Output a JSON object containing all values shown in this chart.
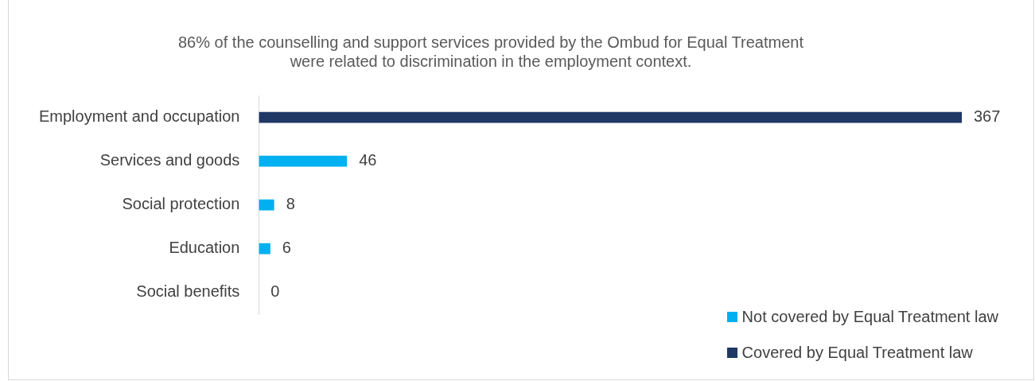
{
  "chart_data": {
    "type": "bar",
    "orientation": "horizontal",
    "title": "86% of the counselling and support services provided by the Ombud for Equal Treatment\nwere related to discrimination in the employment context.",
    "categories": [
      "Employment and occupation",
      "Services and goods",
      "Social protection",
      "Education",
      "Social benefits"
    ],
    "series": [
      {
        "name": "Not covered by Equal Treatment law",
        "color": "#00b0f0",
        "values": [
          null,
          46,
          8,
          6,
          0
        ]
      },
      {
        "name": "Covered by Equal Treatment law",
        "color": "#1f3864",
        "values": [
          367,
          null,
          null,
          null,
          null
        ]
      }
    ],
    "data_labels": true,
    "legend": "bottom right"
  }
}
